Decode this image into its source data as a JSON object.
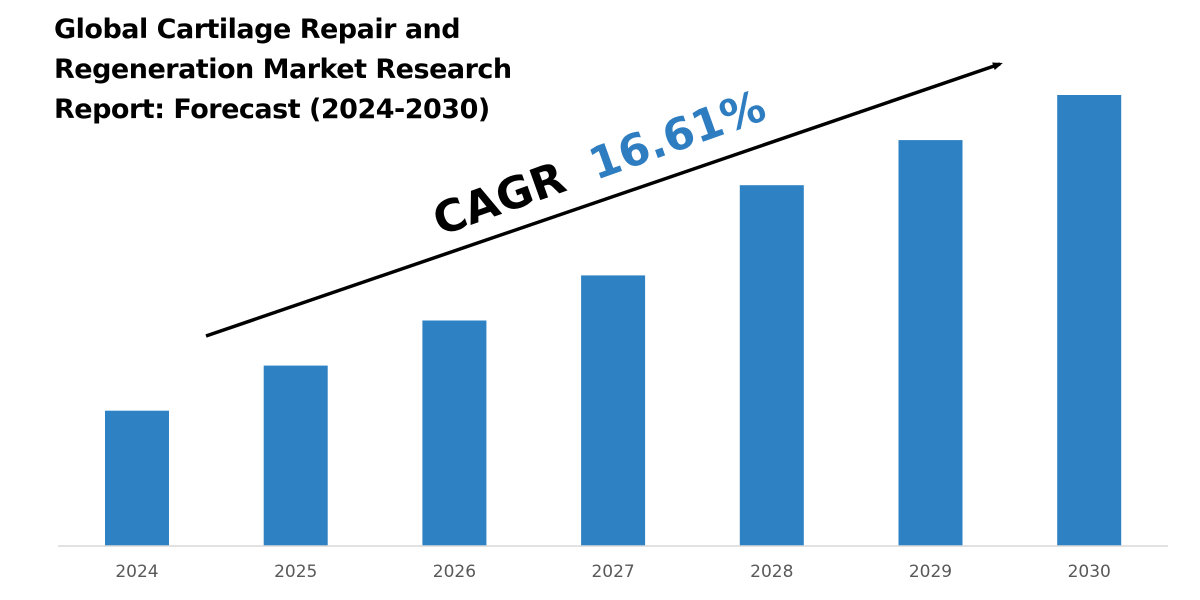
{
  "title_lines": [
    "Global Cartilage Repair and",
    "Regeneration Market Research",
    "Report: Forecast (2024-2030)"
  ],
  "annotation": {
    "prefix": "CAGR",
    "value": "16.61%",
    "prefix_color": "#000000",
    "value_color": "#2e7dc1"
  },
  "colors": {
    "bar": "#2e81c3",
    "axis": "#d9d9d9",
    "arrow": "#000000"
  },
  "chart_data": {
    "type": "bar",
    "title": "Global Cartilage Repair and Regeneration Market Research Report: Forecast (2024-2030)",
    "categories": [
      "2024",
      "2025",
      "2026",
      "2027",
      "2028",
      "2029",
      "2030"
    ],
    "values": [
      30,
      40,
      50,
      60,
      80,
      90,
      100
    ],
    "ylim": [
      0,
      105
    ],
    "xlabel": "",
    "ylabel": "",
    "grid": false,
    "legend": "none",
    "annotations": [
      "CAGR 16.61%"
    ]
  }
}
